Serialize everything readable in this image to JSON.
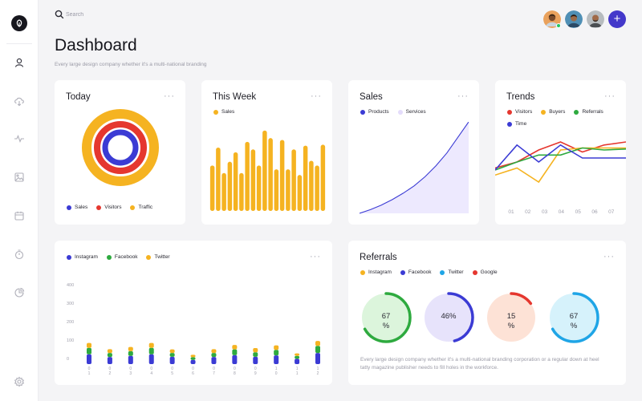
{
  "search": {
    "placeholder": "Search"
  },
  "header": {
    "title": "Dashboard",
    "subtitle": "Every large design company whether it's a multi-national branding"
  },
  "colors": {
    "blue": "#3b3bd4",
    "red": "#e5372f",
    "yellow": "#f5b321",
    "green": "#2eaa3f",
    "sky": "#1fa5e6",
    "lavender": "#ede9fe"
  },
  "sidebar": {
    "icons": [
      "user-icon",
      "download-cloud-icon",
      "activity-icon",
      "image-icon",
      "calendar-icon",
      "timer-icon",
      "pie-chart-icon",
      "settings-icon"
    ]
  },
  "avatars": [
    "user-avatar-1",
    "user-avatar-2",
    "user-avatar-3"
  ],
  "today": {
    "title": "Today",
    "more": "···",
    "legend": [
      {
        "label": "Sales",
        "color": "#3b3bd4"
      },
      {
        "label": "Visitors",
        "color": "#e5372f"
      },
      {
        "label": "Traffic",
        "color": "#f5b321"
      }
    ]
  },
  "week": {
    "title": "This Week",
    "more": "···",
    "legend": [
      {
        "label": "Sales",
        "color": "#f5b321"
      }
    ]
  },
  "sales": {
    "title": "Sales",
    "more": "···",
    "legend": [
      {
        "label": "Products",
        "color": "#3b3bd4"
      },
      {
        "label": "Services",
        "color": "#e4dcfb"
      }
    ]
  },
  "trends": {
    "title": "Trends",
    "more": "···",
    "legend": [
      {
        "label": "Visitors",
        "color": "#e5372f"
      },
      {
        "label": "Buyers",
        "color": "#f5b321"
      },
      {
        "label": "Referrals",
        "color": "#2eaa3f"
      },
      {
        "label": "Time",
        "color": "#3b3bd4"
      }
    ]
  },
  "social": {
    "more": "···",
    "legend": [
      {
        "label": "Instagram",
        "color": "#3b3bd4"
      },
      {
        "label": "Facebook",
        "color": "#2eaa3f"
      },
      {
        "label": "Twitter",
        "color": "#f5b321"
      }
    ]
  },
  "referrals": {
    "title": "Referrals",
    "more": "···",
    "legend": [
      {
        "label": "Instagram",
        "color": "#f5b321"
      },
      {
        "label": "Facebook",
        "color": "#3b3bd4"
      },
      {
        "label": "Twitter",
        "color": "#1fa5e6"
      },
      {
        "label": "Google",
        "color": "#e5372f"
      }
    ],
    "gauges": [
      {
        "label_top": "67",
        "label_bottom": "%",
        "value": 67,
        "stroke": "#2eaa3f",
        "fill": "#dcf5dc"
      },
      {
        "label_top": "46%",
        "label_bottom": "",
        "value": 46,
        "stroke": "#3b3bd4",
        "fill": "#e7e3fb"
      },
      {
        "label_top": "15",
        "label_bottom": "%",
        "value": 15,
        "stroke": "#e5372f",
        "fill": "#fde2d6"
      },
      {
        "label_top": "67",
        "label_bottom": "%",
        "value": 67,
        "stroke": "#1fa5e6",
        "fill": "#d6f2fb"
      }
    ],
    "description": "Every large design company whether it's a multi-national branding corporation or a regular down at heel tatty magazine publisher needs to fill holes in the workforce."
  },
  "chart_data": [
    {
      "type": "pie",
      "categories": [
        "Sales",
        "Visitors",
        "Traffic"
      ],
      "values": [
        1,
        1,
        1
      ]
    },
    {
      "type": "bar",
      "categories": [
        "1",
        "2",
        "3",
        "4",
        "5",
        "6",
        "7",
        "8",
        "9",
        "10",
        "11",
        "12",
        "13",
        "14",
        "15",
        "16",
        "17",
        "18",
        "19",
        "20"
      ],
      "series": [
        {
          "name": "Sales",
          "values": [
            48,
            67,
            40,
            52,
            62,
            40,
            73,
            65,
            48,
            85,
            77,
            44,
            75,
            44,
            65,
            38,
            69,
            53,
            48,
            70
          ]
        }
      ],
      "ylim": [
        0,
        100
      ]
    },
    {
      "type": "area",
      "x": [
        0,
        1,
        2,
        3,
        4,
        5,
        6,
        7,
        8,
        9,
        10
      ],
      "series": [
        {
          "name": "Products",
          "values": [
            0,
            4,
            9,
            15,
            22,
            30,
            40,
            52,
            66,
            83,
            100
          ]
        }
      ],
      "ylim": [
        0,
        100
      ]
    },
    {
      "type": "line",
      "categories": [
        "01",
        "02",
        "03",
        "04",
        "05",
        "06",
        "07"
      ],
      "series": [
        {
          "name": "Visitors",
          "values": [
            22,
            28,
            40,
            48,
            38,
            45,
            48
          ]
        },
        {
          "name": "Buyers",
          "values": [
            15,
            22,
            8,
            40,
            42,
            42,
            42
          ]
        },
        {
          "name": "Referrals",
          "values": [
            20,
            28,
            35,
            35,
            42,
            40,
            41
          ]
        },
        {
          "name": "Time",
          "values": [
            20,
            45,
            28,
            45,
            32,
            32,
            32
          ]
        }
      ],
      "ylim": [
        0,
        60
      ]
    },
    {
      "type": "bar",
      "categories": [
        "01",
        "02",
        "03",
        "04",
        "05",
        "06",
        "07",
        "08",
        "09",
        "10",
        "11",
        "12"
      ],
      "series": [
        {
          "name": "Instagram",
          "values": [
            220,
            160,
            185,
            220,
            165,
            95,
            160,
            200,
            165,
            195,
            120,
            250
          ]
        },
        {
          "name": "Facebook",
          "values": [
            145,
            90,
            105,
            145,
            85,
            60,
            90,
            130,
            100,
            125,
            65,
            160
          ]
        },
        {
          "name": "Twitter",
          "values": [
            110,
            85,
            95,
            110,
            80,
            55,
            85,
            100,
            95,
            100,
            55,
            110
          ]
        }
      ],
      "y_ticks": [
        "400",
        "300",
        "200",
        "100",
        "0"
      ],
      "x_ticks": [
        "0\n1",
        "0\n2",
        "0\n3",
        "0\n4",
        "0\n5",
        "0\n6",
        "0\n7",
        "0\n8",
        "0\n9",
        "1\n0",
        "1\n1",
        "1\n2"
      ],
      "ylim": [
        0,
        500
      ]
    }
  ]
}
